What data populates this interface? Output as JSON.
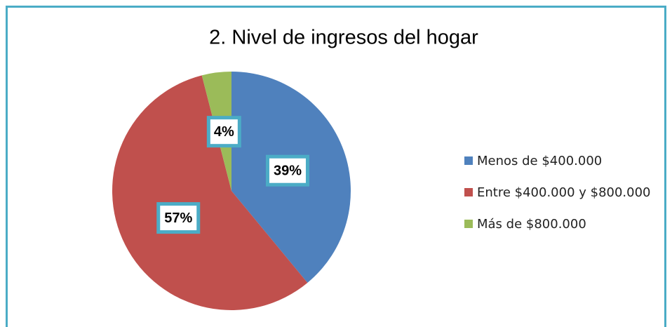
{
  "chart_data": {
    "type": "pie",
    "title": "2. Nivel de ingresos del hogar",
    "categories": [
      "Menos de $400.000",
      "Entre $400.000 y $800.000",
      "Más de $800.000"
    ],
    "values": [
      39,
      57,
      4
    ],
    "value_labels": [
      "39%",
      "57%",
      "4%"
    ],
    "colors": [
      "#4f81bd",
      "#c0504d",
      "#9bbb59"
    ],
    "legend": "right"
  }
}
